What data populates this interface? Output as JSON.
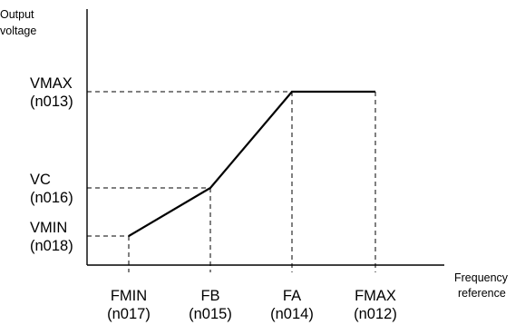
{
  "chart_data": {
    "type": "line",
    "y_title": [
      "Output",
      "voltage"
    ],
    "x_title": [
      "Frequency",
      "reference"
    ],
    "x_ticks": [
      {
        "key": "FMIN",
        "name": "FMIN",
        "param": "(n017)"
      },
      {
        "key": "FB",
        "name": "FB",
        "param": "(n015)"
      },
      {
        "key": "FA",
        "name": "FA",
        "param": "(n014)"
      },
      {
        "key": "FMAX",
        "name": "FMAX",
        "param": "(n012)"
      }
    ],
    "y_ticks": [
      {
        "key": "VMAX",
        "name": "VMAX",
        "param": "(n013)"
      },
      {
        "key": "VC",
        "name": "VC",
        "param": "(n016)"
      },
      {
        "key": "VMIN",
        "name": "VMIN",
        "param": "(n018)"
      }
    ],
    "series": [
      {
        "points": [
          {
            "x": "FMIN",
            "y": "VMIN"
          },
          {
            "x": "FB",
            "y": "VC"
          },
          {
            "x": "FA",
            "y": "VMAX"
          },
          {
            "x": "FMAX",
            "y": "VMAX"
          }
        ]
      }
    ],
    "guides": "dashed lines from each curve vertex to both axes",
    "grid": false,
    "legend": "none"
  }
}
